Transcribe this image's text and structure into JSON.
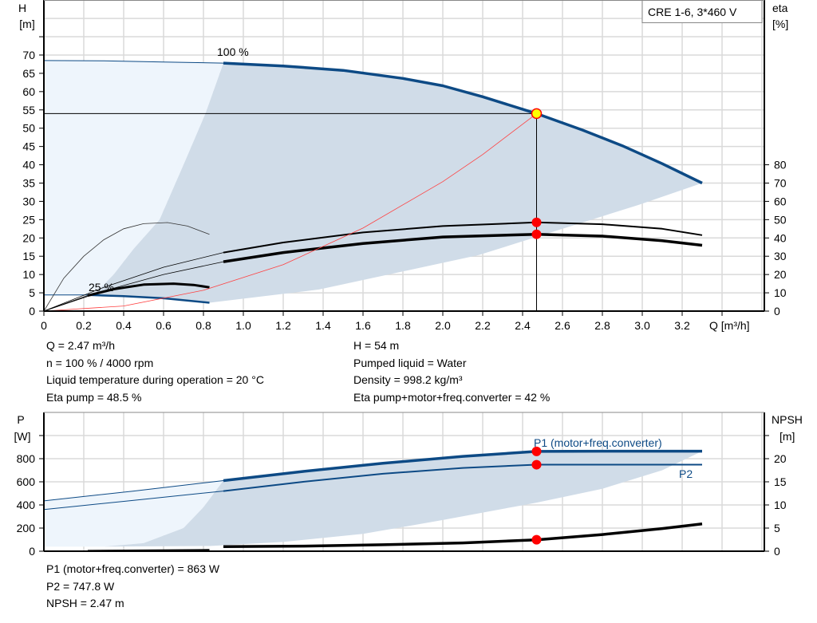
{
  "title_box": "CRE 1-6, 3*460 V",
  "info_left": [
    "Q = 2.47 m³/h",
    "n = 100 % / 4000 rpm",
    "Liquid temperature during operation = 20 °C",
    "Eta pump = 48.5 %"
  ],
  "info_right": [
    "H = 54 m",
    "Pumped liquid = Water",
    "Density = 998.2 kg/m³",
    "Eta pump+motor+freq.converter = 42 %"
  ],
  "info_bottom": [
    "P1 (motor+freq.converter) = 863 W",
    "P2 = 747.8 W",
    "NPSH = 2.47 m"
  ],
  "colors": {
    "curve_blue": "#0d4a85",
    "area_dark": "#d0dce8",
    "area_light": "#eef5fc",
    "grid": "#dadada",
    "marker": "#ff0000",
    "op_point": "#ffff00",
    "system_curve": "#ff4040"
  },
  "chart_data": [
    {
      "type": "line",
      "ylabel": "H",
      "yunit": "[m]",
      "y2label": "eta",
      "y2unit": "[%]",
      "xlabel": "Q [m³/h]",
      "xlim": [
        0,
        3.6
      ],
      "ylim": [
        0,
        85
      ],
      "y2lim": [
        0,
        170
      ],
      "xticks": [
        "0",
        "0.2",
        "0.4",
        "0.6",
        "0.8",
        "1.0",
        "1.2",
        "1.4",
        "1.6",
        "1.8",
        "2.0",
        "2.2",
        "2.4",
        "2.6",
        "2.8",
        "3.0",
        "3.2"
      ],
      "yticks": [
        "0",
        "5",
        "10",
        "15",
        "20",
        "25",
        "30",
        "35",
        "40",
        "45",
        "50",
        "55",
        "60",
        "65",
        "70"
      ],
      "y2ticks": [
        "0",
        "10",
        "20",
        "30",
        "40",
        "50",
        "60",
        "70",
        "80"
      ],
      "grid": true,
      "annotations": [
        "100 %",
        "25 %"
      ],
      "series": [
        {
          "name": "100 %",
          "axis": "H",
          "points": [
            [
              0,
              68.5
            ],
            [
              0.3,
              68.4
            ],
            [
              0.6,
              68.1
            ],
            [
              0.9,
              67.8
            ],
            [
              1.2,
              67.0
            ],
            [
              1.5,
              65.8
            ],
            [
              1.8,
              63.6
            ],
            [
              2.0,
              61.6
            ],
            [
              2.2,
              58.6
            ],
            [
              2.47,
              54
            ],
            [
              2.7,
              49.5
            ],
            [
              2.9,
              45.2
            ],
            [
              3.1,
              40.3
            ],
            [
              3.3,
              35
            ]
          ]
        },
        {
          "name": "25 %",
          "axis": "H",
          "points": [
            [
              0,
              4.4
            ],
            [
              0.22,
              4.4
            ],
            [
              0.4,
              4.1
            ],
            [
              0.6,
              3.5
            ],
            [
              0.83,
              2.3
            ]
          ]
        },
        {
          "axis": "eta",
          "points": [
            [
              0,
              0
            ],
            [
              0.3,
              13
            ],
            [
              0.6,
              24
            ],
            [
              0.9,
              32
            ],
            [
              1.2,
              37.5
            ],
            [
              1.6,
              43
            ],
            [
              2.0,
              46.5
            ],
            [
              2.47,
              48.5
            ],
            [
              2.8,
              47.5
            ],
            [
              3.1,
              45
            ],
            [
              3.3,
              41.5
            ]
          ]
        },
        {
          "axis": "eta",
          "points": [
            [
              0,
              0
            ],
            [
              0.3,
              11
            ],
            [
              0.6,
              20
            ],
            [
              0.9,
              27
            ],
            [
              1.2,
              32
            ],
            [
              1.6,
              37
            ],
            [
              2.0,
              40.5
            ],
            [
              2.47,
              42
            ],
            [
              2.8,
              41
            ],
            [
              3.1,
              38.5
            ],
            [
              3.3,
              36
            ]
          ]
        },
        {
          "axis": "eta",
          "points": [
            [
              0,
              0
            ],
            [
              0.1,
              18
            ],
            [
              0.2,
              30
            ],
            [
              0.3,
              39
            ],
            [
              0.4,
              45
            ],
            [
              0.5,
              47.8
            ],
            [
              0.62,
              48.4
            ],
            [
              0.72,
              46.5
            ],
            [
              0.83,
              42
            ]
          ]
        },
        {
          "axis": "eta",
          "points": [
            [
              0,
              0
            ],
            [
              0.22,
              8.5
            ],
            [
              0.35,
              12
            ],
            [
              0.5,
              14.5
            ],
            [
              0.65,
              15
            ],
            [
              0.75,
              14.3
            ],
            [
              0.83,
              13
            ]
          ]
        },
        {
          "axis": "H",
          "points": [
            [
              0,
              0
            ],
            [
              0.4,
              1.4
            ],
            [
              0.8,
              5.7
            ],
            [
              1.2,
              12.7
            ],
            [
              1.6,
              22.7
            ],
            [
              2.0,
              35.4
            ],
            [
              2.2,
              42.8
            ],
            [
              2.47,
              54
            ]
          ]
        }
      ],
      "operating_point": {
        "Q": 2.47,
        "H": 54,
        "eta_pump": 48.5,
        "eta_total": 42
      }
    },
    {
      "type": "line",
      "ylabel": "P",
      "yunit": "[W]",
      "y2label": "NPSH",
      "y2unit": "[m]",
      "xlim": [
        0,
        3.6
      ],
      "ylim": [
        0,
        1200
      ],
      "y2lim": [
        0,
        30
      ],
      "yticks": [
        "0",
        "200",
        "400",
        "600",
        "800"
      ],
      "y2ticks": [
        "0",
        "5",
        "10",
        "15",
        "20"
      ],
      "grid": true,
      "series": [
        {
          "name": "P1 (motor+freq.converter)",
          "axis": "P",
          "points": [
            [
              0,
              435
            ],
            [
              0.45,
              520
            ],
            [
              0.9,
              610
            ],
            [
              1.3,
              690
            ],
            [
              1.7,
              760
            ],
            [
              2.1,
              820
            ],
            [
              2.47,
              863
            ],
            [
              2.8,
              865
            ],
            [
              3.3,
              865
            ]
          ]
        },
        {
          "name": "P2",
          "axis": "P",
          "points": [
            [
              0,
              360
            ],
            [
              0.45,
              440
            ],
            [
              0.9,
              520
            ],
            [
              1.3,
              600
            ],
            [
              1.7,
              670
            ],
            [
              2.1,
              720
            ],
            [
              2.47,
              748
            ],
            [
              3.3,
              748
            ]
          ]
        },
        {
          "axis": "P",
          "points": [
            [
              0,
              40
            ],
            [
              0.83,
              40
            ]
          ]
        },
        {
          "axis": "NPSH",
          "points": [
            [
              0.9,
              1.0
            ],
            [
              1.3,
              1.1
            ],
            [
              1.7,
              1.4
            ],
            [
              2.1,
              1.8
            ],
            [
              2.47,
              2.47
            ],
            [
              2.8,
              3.6
            ],
            [
              3.1,
              4.9
            ],
            [
              3.3,
              5.9
            ]
          ]
        },
        {
          "axis": "NPSH",
          "points": [
            [
              0.22,
              0.1
            ],
            [
              0.83,
              0.3
            ]
          ]
        }
      ],
      "operating_point": {
        "Q": 2.47,
        "P1": 863,
        "P2": 747.8,
        "NPSH": 2.47
      }
    }
  ]
}
